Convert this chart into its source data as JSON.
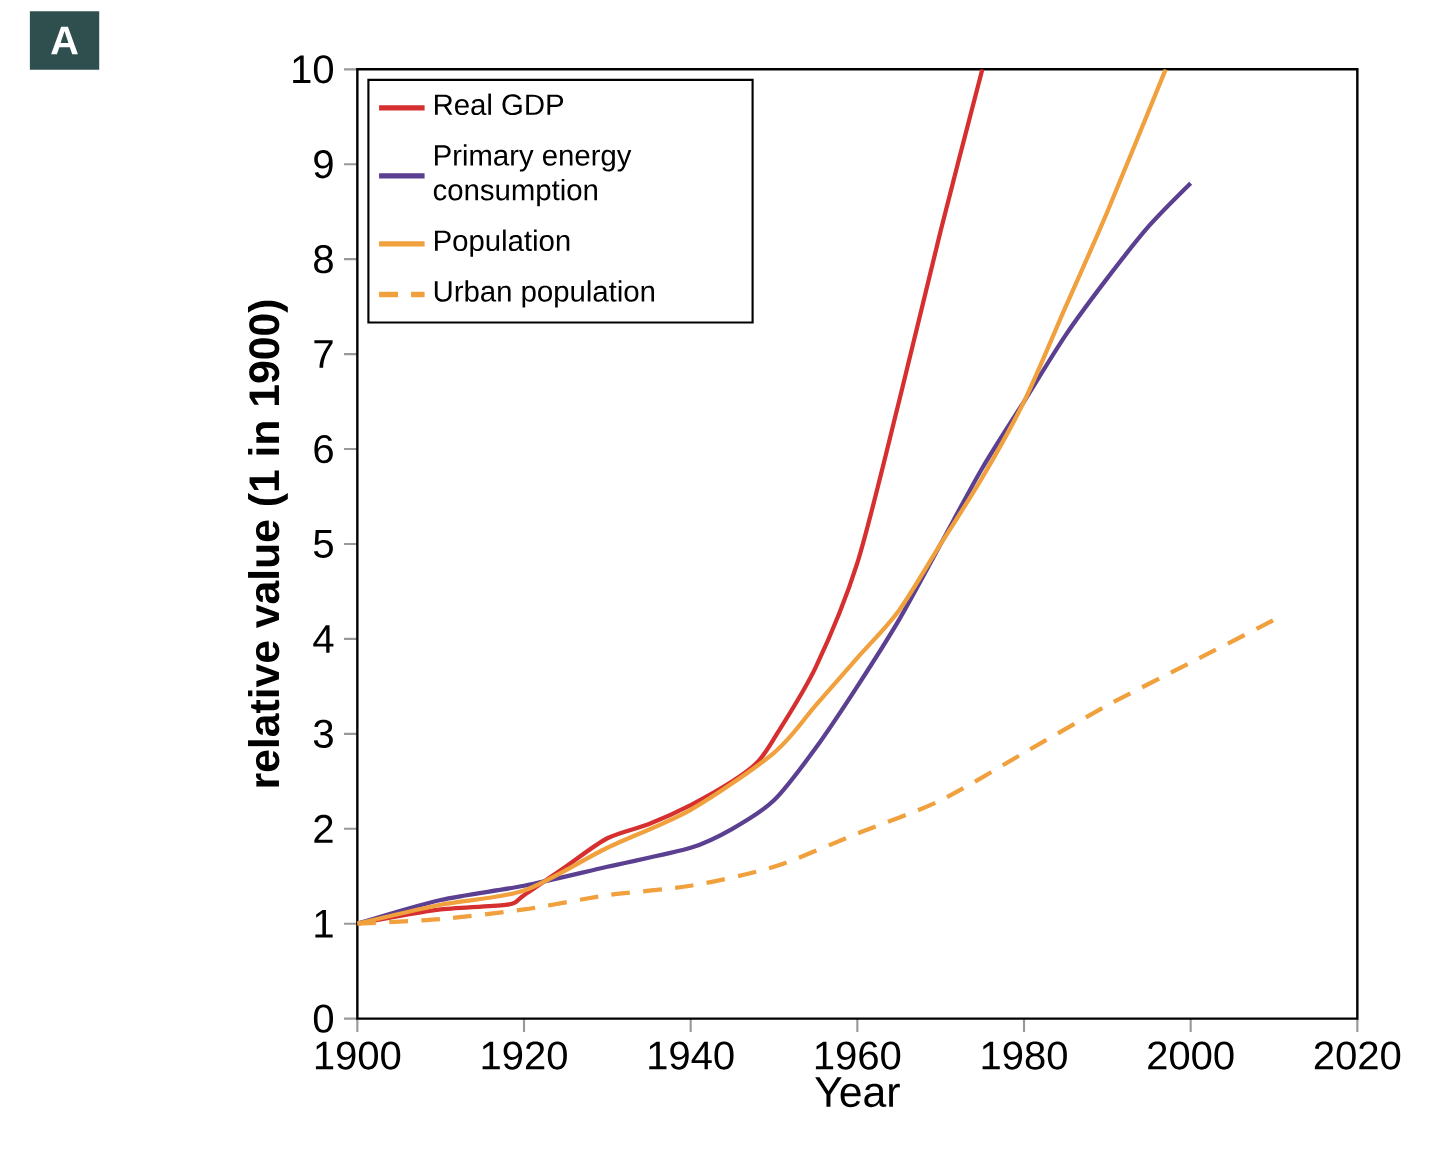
{
  "chart_data": {
    "type": "line",
    "xlabel": "Year",
    "ylabel": "relative value (1 in 1900)",
    "annotations": [
      "A"
    ],
    "xlim": [
      1900,
      2020
    ],
    "ylim": [
      0,
      10
    ],
    "xticks": [
      1900,
      1920,
      1940,
      1960,
      1980,
      2000,
      2020
    ],
    "yticks": [
      0,
      1,
      2,
      3,
      4,
      5,
      6,
      7,
      8,
      9,
      10
    ],
    "grid": false,
    "legend": "top left",
    "marker": "none",
    "series": [
      {
        "name": "Real GDP",
        "color": "#d62f2f",
        "line_style": "solid",
        "x": [
          1900,
          1910,
          1918,
          1920,
          1925,
          1930,
          1935,
          1940,
          1945,
          1948,
          1950,
          1955,
          1960,
          1965,
          1970,
          1975
        ],
        "values": [
          1,
          1.15,
          1.2,
          1.3,
          1.6,
          1.9,
          2.05,
          2.25,
          2.5,
          2.7,
          2.95,
          3.7,
          4.8,
          6.5,
          8.3,
          10
        ]
      },
      {
        "name": "Primary energy consumption",
        "color": "#5b3f90",
        "line_style": "solid",
        "x": [
          1900,
          1910,
          1920,
          1930,
          1940,
          1945,
          1950,
          1955,
          1960,
          1965,
          1970,
          1975,
          1980,
          1985,
          1990,
          1995,
          2000
        ],
        "values": [
          1,
          1.25,
          1.4,
          1.6,
          1.8,
          2.0,
          2.3,
          2.85,
          3.5,
          4.2,
          5.0,
          5.8,
          6.5,
          7.2,
          7.8,
          8.35,
          8.8
        ]
      },
      {
        "name": "Population",
        "color": "#f0a03c",
        "line_style": "solid",
        "x": [
          1900,
          1910,
          1920,
          1930,
          1940,
          1950,
          1955,
          1960,
          1965,
          1970,
          1975,
          1980,
          1985,
          1990,
          1997
        ],
        "values": [
          1,
          1.2,
          1.35,
          1.8,
          2.2,
          2.8,
          3.3,
          3.8,
          4.3,
          5.0,
          5.7,
          6.5,
          7.5,
          8.5,
          10
        ]
      },
      {
        "name": "Urban population",
        "color": "#f0a03c",
        "line_style": "dashed",
        "x": [
          1900,
          1910,
          1920,
          1930,
          1940,
          1950,
          1960,
          1970,
          1980,
          1990,
          2000,
          2010
        ],
        "values": [
          1,
          1.05,
          1.15,
          1.3,
          1.4,
          1.6,
          1.95,
          2.3,
          2.8,
          3.3,
          3.75,
          4.2
        ]
      }
    ]
  }
}
